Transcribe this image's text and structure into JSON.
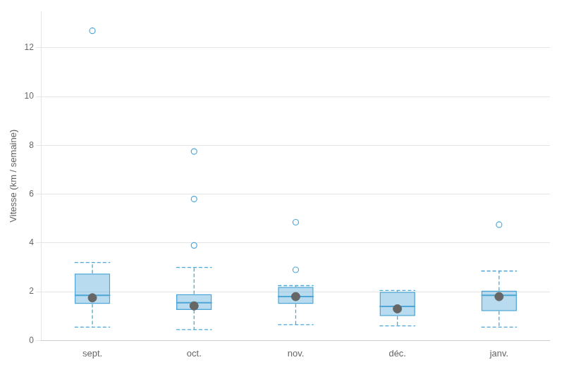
{
  "chart_data": {
    "type": "box",
    "categories": [
      "sept.",
      "oct.",
      "nov.",
      "déc.",
      "janv."
    ],
    "boxes": [
      {
        "q1": 1.5,
        "median": 1.85,
        "q3": 2.75,
        "whisker_low": 0.55,
        "whisker_high": 3.2,
        "mean": 1.75,
        "fliers": [
          12.7
        ]
      },
      {
        "q1": 1.25,
        "median": 1.55,
        "q3": 1.9,
        "whisker_low": 0.45,
        "whisker_high": 3.0,
        "mean": 1.42,
        "fliers": [
          3.9,
          5.8,
          7.75
        ]
      },
      {
        "q1": 1.5,
        "median": 1.8,
        "q3": 2.2,
        "whisker_low": 0.65,
        "whisker_high": 2.25,
        "mean": 1.8,
        "fliers": [
          2.9,
          4.85
        ]
      },
      {
        "q1": 1.0,
        "median": 1.4,
        "q3": 2.0,
        "whisker_low": 0.6,
        "whisker_high": 2.05,
        "mean": 1.3,
        "fliers": []
      },
      {
        "q1": 1.2,
        "median": 1.85,
        "q3": 2.05,
        "whisker_low": 0.55,
        "whisker_high": 2.85,
        "mean": 1.8,
        "fliers": [
          4.75
        ]
      }
    ],
    "color": "#4da6d6",
    "ylabel": "Vitesse (km / semaine)",
    "ylim": [
      0,
      13.5
    ],
    "yticks": [
      0,
      2,
      4,
      6,
      8,
      10,
      12
    ],
    "grid": true
  }
}
